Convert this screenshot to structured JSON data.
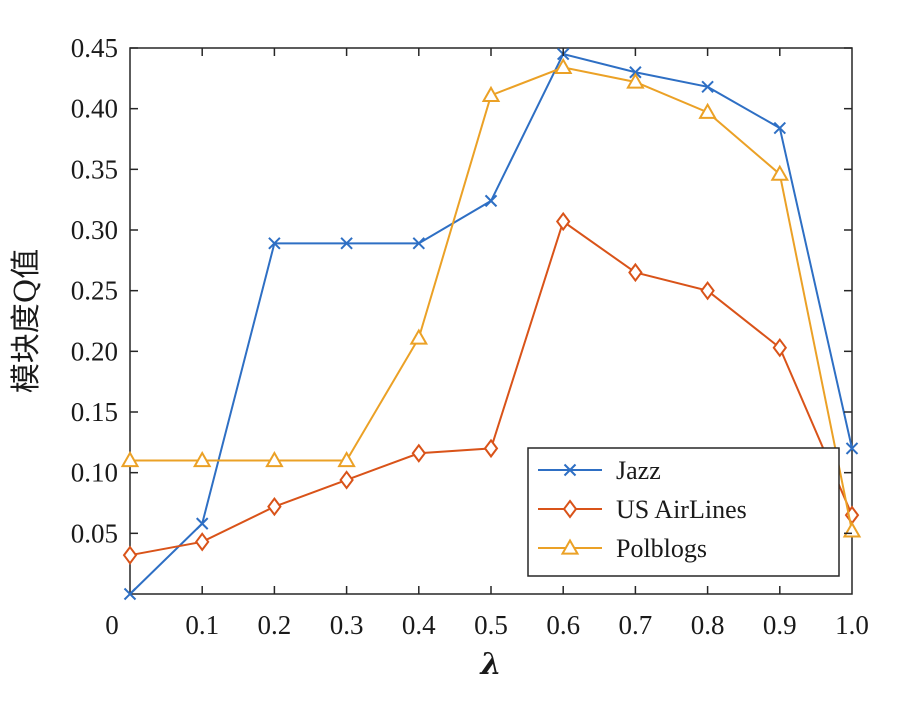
{
  "chart_data": {
    "type": "line",
    "title": "",
    "xlabel": "λ",
    "ylabel": "模块度Q值",
    "xlim": [
      0,
      1.0
    ],
    "ylim": [
      0,
      0.45
    ],
    "x": [
      0,
      0.1,
      0.2,
      0.3,
      0.4,
      0.5,
      0.6,
      0.7,
      0.8,
      0.9,
      1.0
    ],
    "x_tick_labels": [
      "0",
      "0.1",
      "0.2",
      "0.3",
      "0.4",
      "0.5",
      "0.6",
      "0.7",
      "0.8",
      "0.9",
      "1.0"
    ],
    "y_tick_values": [
      0.05,
      0.1,
      0.15,
      0.2,
      0.25,
      0.3,
      0.35,
      0.4,
      0.45
    ],
    "y_tick_labels": [
      "0.05",
      "0.10",
      "0.15",
      "0.20",
      "0.25",
      "0.30",
      "0.35",
      "0.40",
      "0.45"
    ],
    "legend_position": "bottom-right",
    "grid": false,
    "series": [
      {
        "name": "Jazz",
        "marker": "x",
        "color": "#2e6fc4",
        "values": [
          0.0,
          0.058,
          0.289,
          0.289,
          0.289,
          0.324,
          0.445,
          0.43,
          0.418,
          0.384,
          0.12
        ]
      },
      {
        "name": "US AirLines",
        "marker": "diamond",
        "color": "#d95319",
        "values": [
          0.032,
          0.043,
          0.072,
          0.094,
          0.116,
          0.12,
          0.307,
          0.265,
          0.25,
          0.203,
          0.065
        ]
      },
      {
        "name": "Polblogs",
        "marker": "triangle",
        "color": "#eba126",
        "values": [
          0.11,
          0.11,
          0.11,
          0.11,
          0.211,
          0.411,
          0.434,
          0.422,
          0.397,
          0.346,
          0.052
        ]
      }
    ]
  }
}
